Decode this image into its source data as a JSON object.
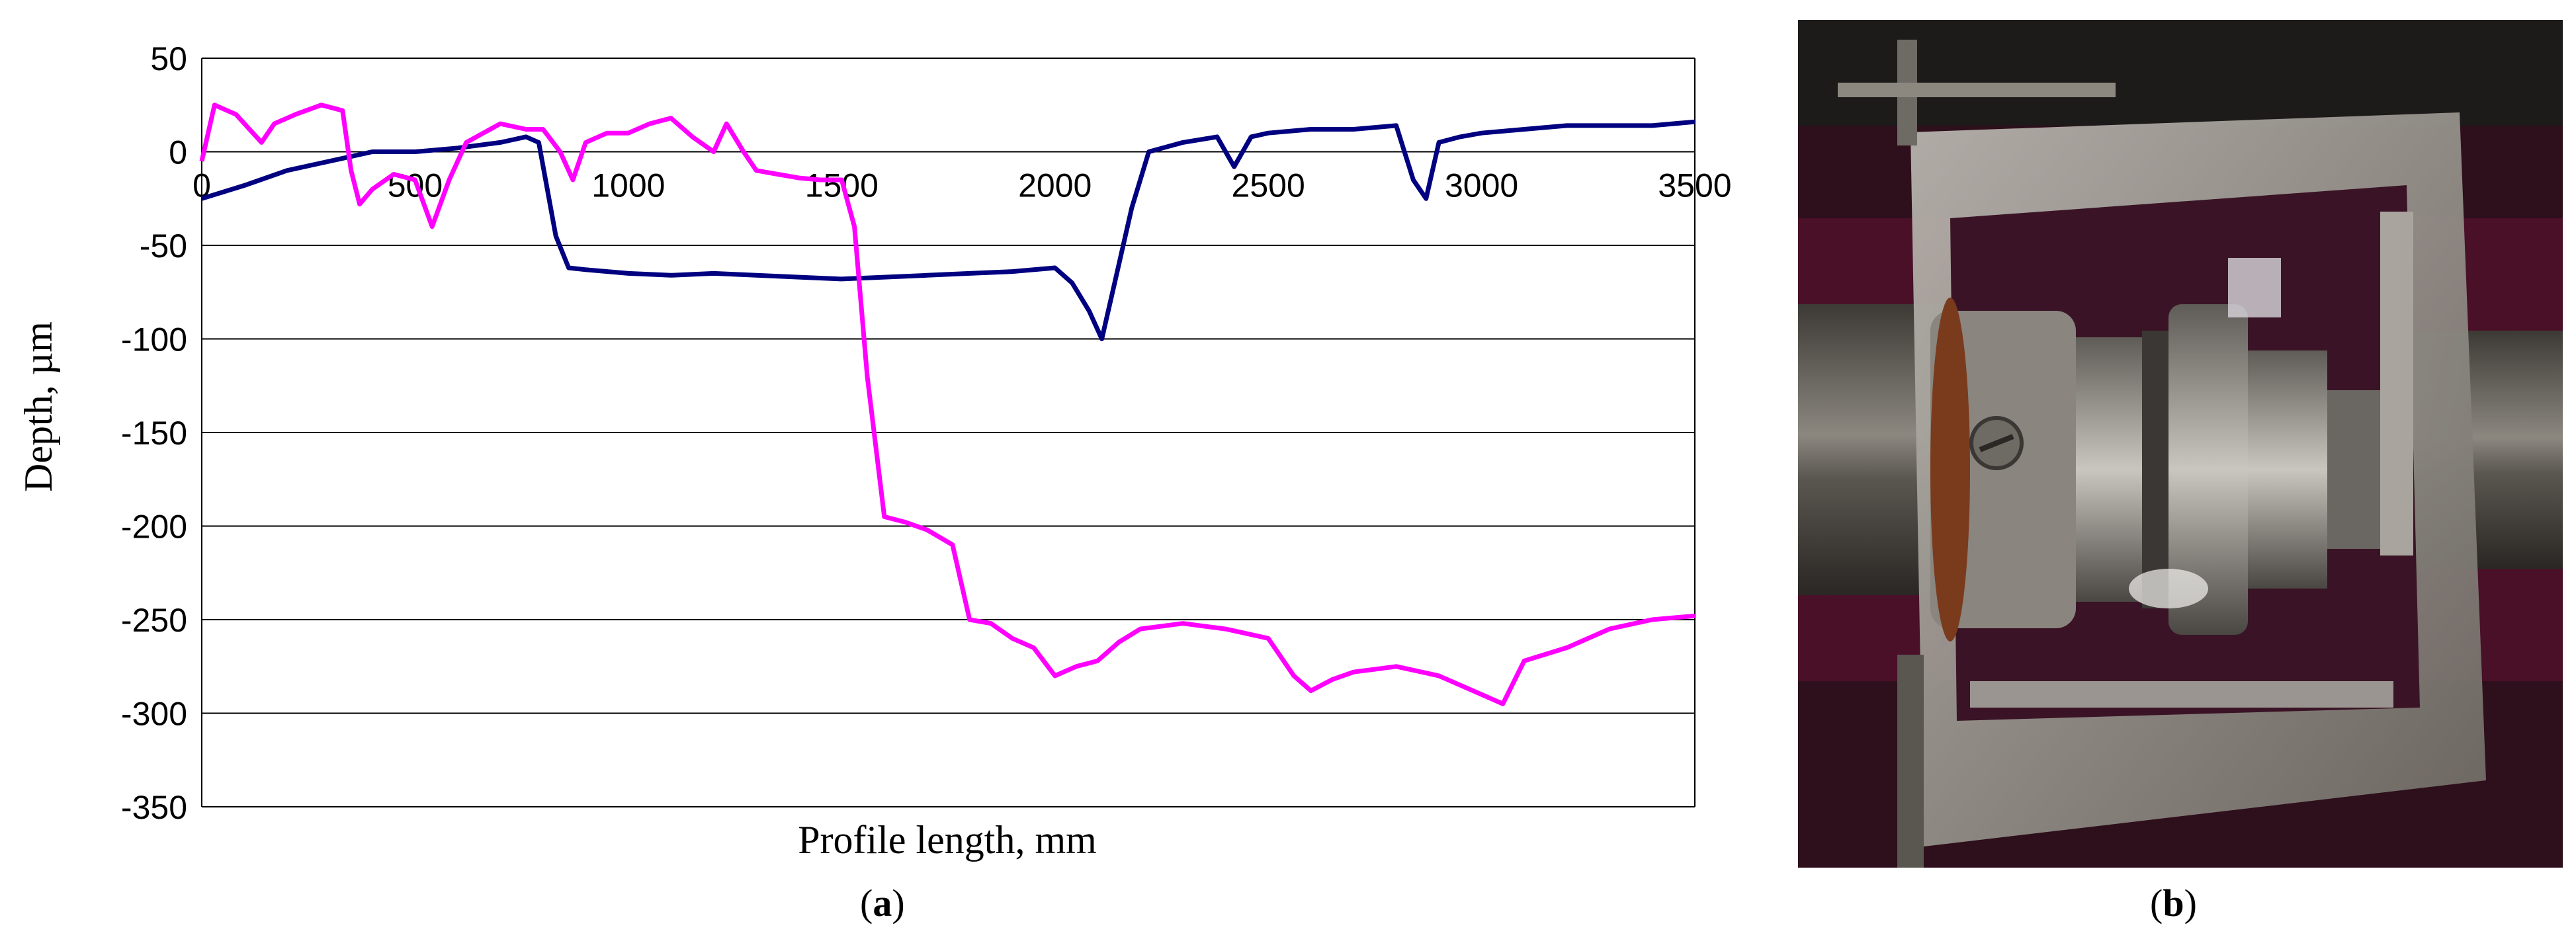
{
  "chart_data": {
    "type": "line",
    "title": "",
    "xlabel": "Profile length, mm",
    "ylabel": "Depth, µm",
    "xlim": [
      0,
      3500
    ],
    "ylim": [
      -350,
      50
    ],
    "x_ticks": [
      "0",
      "500",
      "1000",
      "1500",
      "2000",
      "2500",
      "3000",
      "3500"
    ],
    "y_ticks": [
      "50",
      "0",
      "-50",
      "-100",
      "-150",
      "-200",
      "-250",
      "-300",
      "-350"
    ],
    "grid": "horizontal",
    "legend": "none",
    "series": [
      {
        "color": "#000080",
        "x": [
          0,
          100,
          200,
          300,
          400,
          500,
          600,
          700,
          760,
          790,
          830,
          860,
          900,
          1000,
          1100,
          1200,
          1300,
          1400,
          1500,
          1600,
          1700,
          1800,
          1900,
          2000,
          2040,
          2080,
          2110,
          2140,
          2180,
          2220,
          2300,
          2380,
          2420,
          2460,
          2500,
          2600,
          2700,
          2800,
          2840,
          2870,
          2900,
          2950,
          3000,
          3100,
          3200,
          3300,
          3400,
          3500
        ],
        "y": [
          -25,
          -18,
          -10,
          -5,
          0,
          0,
          2,
          5,
          8,
          5,
          -45,
          -62,
          -63,
          -65,
          -66,
          -65,
          -66,
          -67,
          -68,
          -67,
          -66,
          -65,
          -64,
          -62,
          -70,
          -85,
          -100,
          -70,
          -30,
          0,
          5,
          8,
          -8,
          8,
          10,
          12,
          12,
          14,
          -15,
          -25,
          5,
          8,
          10,
          12,
          14,
          14,
          14,
          16
        ]
      },
      {
        "color": "#FF00FF",
        "x": [
          0,
          30,
          80,
          140,
          170,
          220,
          280,
          330,
          350,
          370,
          400,
          450,
          500,
          540,
          580,
          620,
          660,
          700,
          760,
          800,
          840,
          870,
          900,
          950,
          1000,
          1050,
          1100,
          1150,
          1200,
          1230,
          1270,
          1300,
          1350,
          1400,
          1450,
          1500,
          1530,
          1560,
          1600,
          1650,
          1700,
          1760,
          1800,
          1850,
          1900,
          1950,
          2000,
          2050,
          2100,
          2150,
          2200,
          2300,
          2400,
          2500,
          2560,
          2600,
          2650,
          2700,
          2800,
          2900,
          3000,
          3050,
          3100,
          3200,
          3300,
          3400,
          3500
        ],
        "y": [
          -5,
          25,
          20,
          5,
          15,
          20,
          25,
          22,
          -10,
          -28,
          -20,
          -12,
          -15,
          -40,
          -15,
          5,
          10,
          15,
          12,
          12,
          0,
          -15,
          5,
          10,
          10,
          15,
          18,
          8,
          0,
          15,
          0,
          -10,
          -12,
          -14,
          -15,
          -15,
          -40,
          -120,
          -195,
          -198,
          -202,
          -210,
          -250,
          -252,
          -260,
          -265,
          -280,
          -275,
          -272,
          -262,
          -255,
          -252,
          -255,
          -260,
          -280,
          -288,
          -282,
          -278,
          -275,
          -280,
          -290,
          -295,
          -272,
          -265,
          -255,
          -250,
          -248
        ]
      }
    ],
    "panel_labels": [
      "(a)",
      "(b)"
    ]
  }
}
